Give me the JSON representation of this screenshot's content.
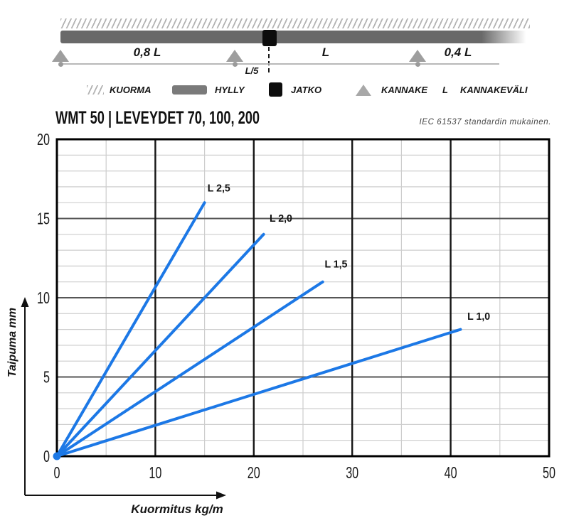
{
  "diagram": {
    "span_labels": [
      "0,8 L",
      "L",
      "0,4 L"
    ],
    "joint_offset_label": "L/5"
  },
  "legend": {
    "items": [
      {
        "icon": "load-hatch-icon",
        "label": "KUORMA"
      },
      {
        "icon": "shelf-icon",
        "label": "HYLLY"
      },
      {
        "icon": "joint-icon",
        "label": "JATKO"
      },
      {
        "icon": "support-icon",
        "label": "KANNAKE"
      },
      {
        "icon": "letter-symbol",
        "symbol": "L",
        "label": "KANNAKEVÄLI"
      }
    ]
  },
  "header": {
    "title": "WMT 50 | LEVEYDET 70, 100, 200",
    "standard_note": "IEC 61537 standardin mukainen."
  },
  "chart_data": {
    "type": "line",
    "title": "WMT 50 deflection curves",
    "xlabel": "Kuormitus kg/m",
    "ylabel": "Taipuma mm",
    "xlim": [
      0,
      50
    ],
    "ylim": [
      0,
      20
    ],
    "x_ticks": [
      0,
      10,
      20,
      30,
      40,
      50
    ],
    "y_ticks": [
      0,
      5,
      10,
      15,
      20
    ],
    "x_minor_step": 5,
    "y_minor_step": 1,
    "grid": "major+minor",
    "legend_position": "inline-labels",
    "line_color": "#1c78e6",
    "series": [
      {
        "name": "L 2,5",
        "x": [
          0,
          15
        ],
        "y": [
          0,
          16
        ],
        "label_pos": [
          15.3,
          16.7
        ]
      },
      {
        "name": "L 2,0",
        "x": [
          0,
          21
        ],
        "y": [
          0,
          14
        ],
        "label_pos": [
          21.6,
          14.8
        ]
      },
      {
        "name": "L 1,5",
        "x": [
          0,
          27
        ],
        "y": [
          0,
          11
        ],
        "label_pos": [
          27.2,
          11.9
        ]
      },
      {
        "name": "L 1,0",
        "x": [
          0,
          41
        ],
        "y": [
          0,
          8
        ],
        "label_pos": [
          41.7,
          8.6
        ]
      }
    ]
  }
}
